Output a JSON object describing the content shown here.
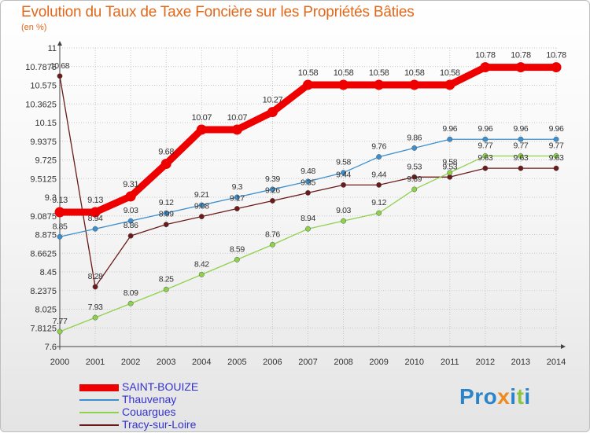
{
  "page": {
    "title": "Evolution du Taux de Taxe Foncière sur les Propriétés Bâties",
    "unit_label": "(en %)",
    "logo_text": "Proxiti"
  },
  "chart_data": {
    "type": "line",
    "title": "Evolution du Taux de Taxe Foncière sur les Propriétés Bâties",
    "ylabel": "(en %)",
    "x": [
      "2000",
      "2001",
      "2002",
      "2003",
      "2004",
      "2005",
      "2006",
      "2007",
      "2008",
      "2009",
      "2010",
      "2011",
      "2012",
      "2013",
      "2014"
    ],
    "y_ticks": [
      "7.6",
      "7.8125",
      "8.025",
      "8.2375",
      "8.45",
      "8.6625",
      "8.875",
      "9.0875",
      "9.3",
      "9.5125",
      "9.725",
      "9.9375",
      "10.15",
      "10.3625",
      "10.575",
      "10.7875",
      "11"
    ],
    "ylim": [
      7.6,
      11
    ],
    "grid": true,
    "legend_position": "bottom-left",
    "series": [
      {
        "name": "SAINT-BOUIZE",
        "color": "#ee0000",
        "values": [
          9.13,
          9.13,
          9.31,
          9.68,
          10.07,
          10.07,
          10.27,
          10.58,
          10.58,
          10.58,
          10.58,
          10.58,
          10.78,
          10.78,
          10.78
        ],
        "labels": [
          "9.13",
          "9.13",
          "9.31",
          "9.68",
          "10.07",
          "10.07",
          "10.27",
          "10.58",
          "10.58",
          "10.58",
          "10.58",
          "10.58",
          "10.78",
          "10.78",
          "10.78"
        ]
      },
      {
        "name": "Thauvenay",
        "color": "#3b8fd0",
        "values": [
          8.85,
          8.94,
          9.03,
          9.12,
          9.21,
          9.3,
          9.39,
          9.48,
          9.58,
          9.76,
          9.86,
          9.96,
          9.96,
          9.96,
          9.96
        ],
        "labels": [
          "8.85",
          "8.94",
          "9.03",
          "9.12",
          "9.21",
          "9.3",
          "9.39",
          "9.48",
          "9.58",
          "9.76",
          "9.86",
          "9.96",
          "9.96",
          "9.96",
          "9.96"
        ]
      },
      {
        "name": "Couargues",
        "color": "#8ed14b",
        "values": [
          7.77,
          7.93,
          8.09,
          8.25,
          8.42,
          8.59,
          8.76,
          8.94,
          9.03,
          9.12,
          9.39,
          9.58,
          9.77,
          9.77,
          9.77
        ],
        "labels": [
          "7.77",
          "7.93",
          "8.09",
          "8.25",
          "8.42",
          "8.59",
          "8.76",
          "8.94",
          "9.03",
          "9.12",
          "9.39",
          "9.58",
          "9.77",
          "9.77",
          "9.77"
        ]
      },
      {
        "name": "Tracy-sur-Loire",
        "color": "#6b1a1a",
        "values": [
          10.68,
          8.28,
          8.86,
          8.99,
          9.08,
          9.17,
          9.26,
          9.35,
          9.44,
          9.44,
          9.53,
          9.53,
          9.63,
          9.63,
          9.63
        ],
        "labels": [
          "10.68",
          "8.28",
          "8.86",
          "8.99",
          "9.08",
          "9.17",
          "9.26",
          "9.35",
          "9.44",
          "9.44",
          "9.53",
          "9.53",
          "9.63",
          "9.63",
          "9.63"
        ]
      }
    ]
  }
}
